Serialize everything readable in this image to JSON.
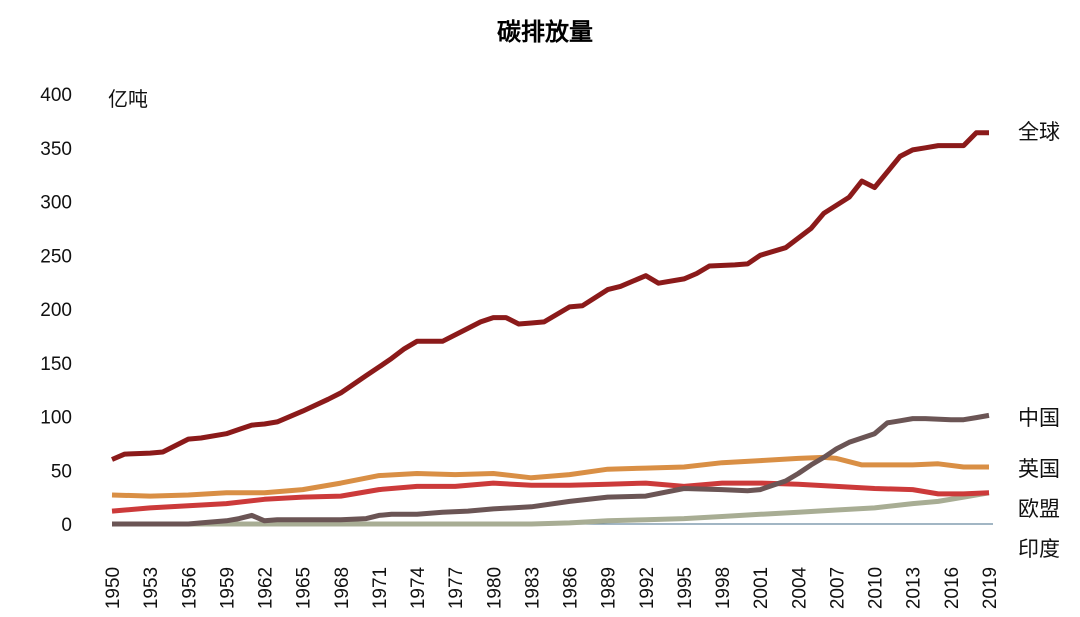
{
  "chart_data": {
    "type": "line",
    "title": "碳排放量",
    "ylabel": "亿吨",
    "xlabel": "",
    "ylim": [
      0,
      400
    ],
    "yticks": [
      0,
      50,
      100,
      150,
      200,
      250,
      300,
      350,
      400
    ],
    "xlim": [
      1950,
      2019
    ],
    "xticks": [
      1950,
      1953,
      1956,
      1959,
      1962,
      1965,
      1968,
      1971,
      1974,
      1977,
      1980,
      1983,
      1986,
      1989,
      1992,
      1995,
      1998,
      2001,
      2004,
      2007,
      2010,
      2013,
      2016,
      2019
    ],
    "grid": false,
    "legend": "direct labels at right end of lines",
    "series": [
      {
        "name": "全球",
        "color": "#8b1a1a",
        "points": [
          [
            1950,
            60
          ],
          [
            1951,
            65
          ],
          [
            1953,
            66
          ],
          [
            1954,
            67
          ],
          [
            1956,
            79
          ],
          [
            1957,
            80
          ],
          [
            1959,
            84
          ],
          [
            1960,
            88
          ],
          [
            1961,
            92
          ],
          [
            1962,
            93
          ],
          [
            1963,
            95
          ],
          [
            1965,
            105
          ],
          [
            1967,
            116
          ],
          [
            1968,
            122
          ],
          [
            1970,
            138
          ],
          [
            1971,
            146
          ],
          [
            1972,
            154
          ],
          [
            1973,
            163
          ],
          [
            1974,
            170
          ],
          [
            1975,
            170
          ],
          [
            1976,
            170
          ],
          [
            1978,
            182
          ],
          [
            1979,
            188
          ],
          [
            1980,
            192
          ],
          [
            1981,
            192
          ],
          [
            1982,
            186
          ],
          [
            1983,
            187
          ],
          [
            1984,
            188
          ],
          [
            1986,
            202
          ],
          [
            1987,
            203
          ],
          [
            1989,
            218
          ],
          [
            1990,
            221
          ],
          [
            1992,
            231
          ],
          [
            1993,
            224
          ],
          [
            1995,
            228
          ],
          [
            1996,
            233
          ],
          [
            1997,
            240
          ],
          [
            1999,
            241
          ],
          [
            2000,
            242
          ],
          [
            2001,
            250
          ],
          [
            2003,
            257
          ],
          [
            2005,
            275
          ],
          [
            2006,
            289
          ],
          [
            2008,
            304
          ],
          [
            2009,
            319
          ],
          [
            2010,
            313
          ],
          [
            2012,
            342
          ],
          [
            2013,
            348
          ],
          [
            2014,
            350
          ],
          [
            2015,
            352
          ],
          [
            2017,
            352
          ],
          [
            2018,
            364
          ],
          [
            2019,
            364
          ]
        ]
      },
      {
        "name": "中国",
        "color": "#6b5555",
        "points": [
          [
            1950,
            0
          ],
          [
            1956,
            0
          ],
          [
            1957,
            1
          ],
          [
            1959,
            3
          ],
          [
            1960,
            5
          ],
          [
            1961,
            8
          ],
          [
            1962,
            3
          ],
          [
            1963,
            4
          ],
          [
            1965,
            4
          ],
          [
            1968,
            4
          ],
          [
            1970,
            5
          ],
          [
            1971,
            8
          ],
          [
            1972,
            9
          ],
          [
            1974,
            9
          ],
          [
            1976,
            11
          ],
          [
            1978,
            12
          ],
          [
            1980,
            14
          ],
          [
            1983,
            16
          ],
          [
            1986,
            21
          ],
          [
            1989,
            25
          ],
          [
            1992,
            26
          ],
          [
            1995,
            33
          ],
          [
            1998,
            32
          ],
          [
            2000,
            31
          ],
          [
            2001,
            32
          ],
          [
            2002,
            36
          ],
          [
            2003,
            40
          ],
          [
            2004,
            47
          ],
          [
            2005,
            55
          ],
          [
            2006,
            62
          ],
          [
            2007,
            70
          ],
          [
            2008,
            76
          ],
          [
            2009,
            80
          ],
          [
            2010,
            84
          ],
          [
            2011,
            94
          ],
          [
            2012,
            96
          ],
          [
            2013,
            98
          ],
          [
            2014,
            98
          ],
          [
            2016,
            97
          ],
          [
            2017,
            97
          ],
          [
            2018,
            99
          ],
          [
            2019,
            101
          ]
        ]
      },
      {
        "name": "英国",
        "color": "#d98f45",
        "points": [
          [
            1950,
            27
          ],
          [
            1953,
            26
          ],
          [
            1956,
            27
          ],
          [
            1959,
            29
          ],
          [
            1962,
            29
          ],
          [
            1965,
            32
          ],
          [
            1968,
            38
          ],
          [
            1971,
            45
          ],
          [
            1974,
            47
          ],
          [
            1977,
            46
          ],
          [
            1980,
            47
          ],
          [
            1983,
            43
          ],
          [
            1986,
            46
          ],
          [
            1989,
            51
          ],
          [
            1992,
            52
          ],
          [
            1995,
            53
          ],
          [
            1998,
            57
          ],
          [
            2001,
            59
          ],
          [
            2004,
            61
          ],
          [
            2006,
            62
          ],
          [
            2007,
            61
          ],
          [
            2009,
            55
          ],
          [
            2010,
            55
          ],
          [
            2013,
            55
          ],
          [
            2015,
            56
          ],
          [
            2017,
            53
          ],
          [
            2019,
            53
          ]
        ]
      },
      {
        "name": "欧盟",
        "color": "#cc3a3a",
        "points": [
          [
            1950,
            12
          ],
          [
            1953,
            15
          ],
          [
            1956,
            17
          ],
          [
            1959,
            19
          ],
          [
            1962,
            23
          ],
          [
            1965,
            25
          ],
          [
            1968,
            26
          ],
          [
            1971,
            32
          ],
          [
            1974,
            35
          ],
          [
            1977,
            35
          ],
          [
            1980,
            38
          ],
          [
            1983,
            36
          ],
          [
            1986,
            36
          ],
          [
            1989,
            37
          ],
          [
            1992,
            38
          ],
          [
            1995,
            35
          ],
          [
            1998,
            38
          ],
          [
            2001,
            38
          ],
          [
            2004,
            37
          ],
          [
            2007,
            35
          ],
          [
            2010,
            33
          ],
          [
            2013,
            32
          ],
          [
            2015,
            28
          ],
          [
            2017,
            28
          ],
          [
            2019,
            29
          ]
        ]
      },
      {
        "name": "印度",
        "color": "#a8ad94",
        "points": [
          [
            1950,
            0
          ],
          [
            1955,
            0
          ],
          [
            1960,
            0
          ],
          [
            1965,
            0
          ],
          [
            1970,
            0
          ],
          [
            1975,
            0
          ],
          [
            1980,
            0
          ],
          [
            1983,
            0
          ],
          [
            1986,
            1
          ],
          [
            1989,
            3
          ],
          [
            1992,
            4
          ],
          [
            1995,
            5
          ],
          [
            1998,
            7
          ],
          [
            2001,
            9
          ],
          [
            2004,
            11
          ],
          [
            2007,
            13
          ],
          [
            2010,
            15
          ],
          [
            2013,
            19
          ],
          [
            2015,
            21
          ],
          [
            2017,
            25
          ],
          [
            2019,
            29
          ]
        ]
      }
    ]
  }
}
